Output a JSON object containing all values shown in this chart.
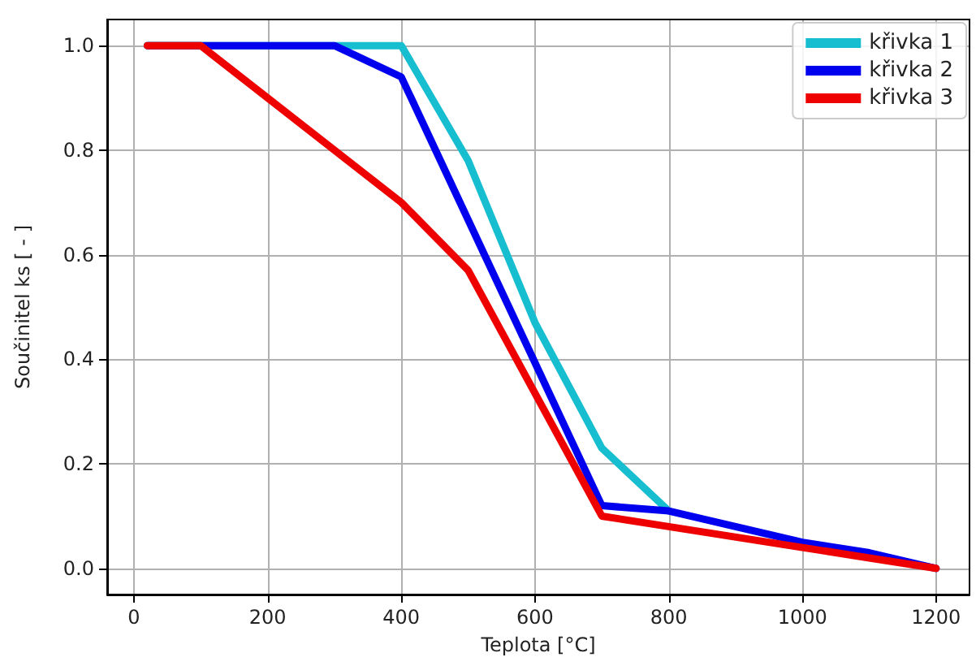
{
  "chart_data": {
    "type": "line",
    "xlabel": "Teplota [°C]",
    "ylabel": "Součinitel ks [ - ]",
    "series": [
      {
        "name": "křivka 1",
        "color": "#17becf",
        "x": [
          20,
          400,
          500,
          600,
          700,
          800
        ],
        "values": [
          1.0,
          1.0,
          0.78,
          0.47,
          0.23,
          0.11
        ]
      },
      {
        "name": "křivka 2",
        "color": "#0000ee",
        "x": [
          20,
          300,
          400,
          700,
          800,
          1000,
          1100,
          1200
        ],
        "values": [
          1.0,
          1.0,
          0.94,
          0.12,
          0.11,
          0.05,
          0.03,
          0.0
        ]
      },
      {
        "name": "křivka 3",
        "color": "#ee0000",
        "x": [
          20,
          100,
          400,
          500,
          700,
          800,
          1000,
          1100,
          1200
        ],
        "values": [
          1.0,
          1.0,
          0.7,
          0.57,
          0.1,
          0.08,
          0.04,
          0.02,
          0.0
        ]
      }
    ],
    "xlim": [
      -40,
      1250
    ],
    "xticks": [
      0,
      200,
      400,
      600,
      800,
      {
        "value": 1000,
        "label": "1000"
      },
      {
        "value": 1200,
        "label": "1200"
      }
    ],
    "ylim": [
      -0.05,
      1.05
    ],
    "yticks": [
      {
        "value": 0,
        "label": "0.0"
      },
      0.2,
      0.4,
      0.6,
      0.8,
      {
        "value": 1,
        "label": "1.0"
      }
    ],
    "grid": true,
    "legend": "top right",
    "marker": "none",
    "line_style": "solid"
  }
}
